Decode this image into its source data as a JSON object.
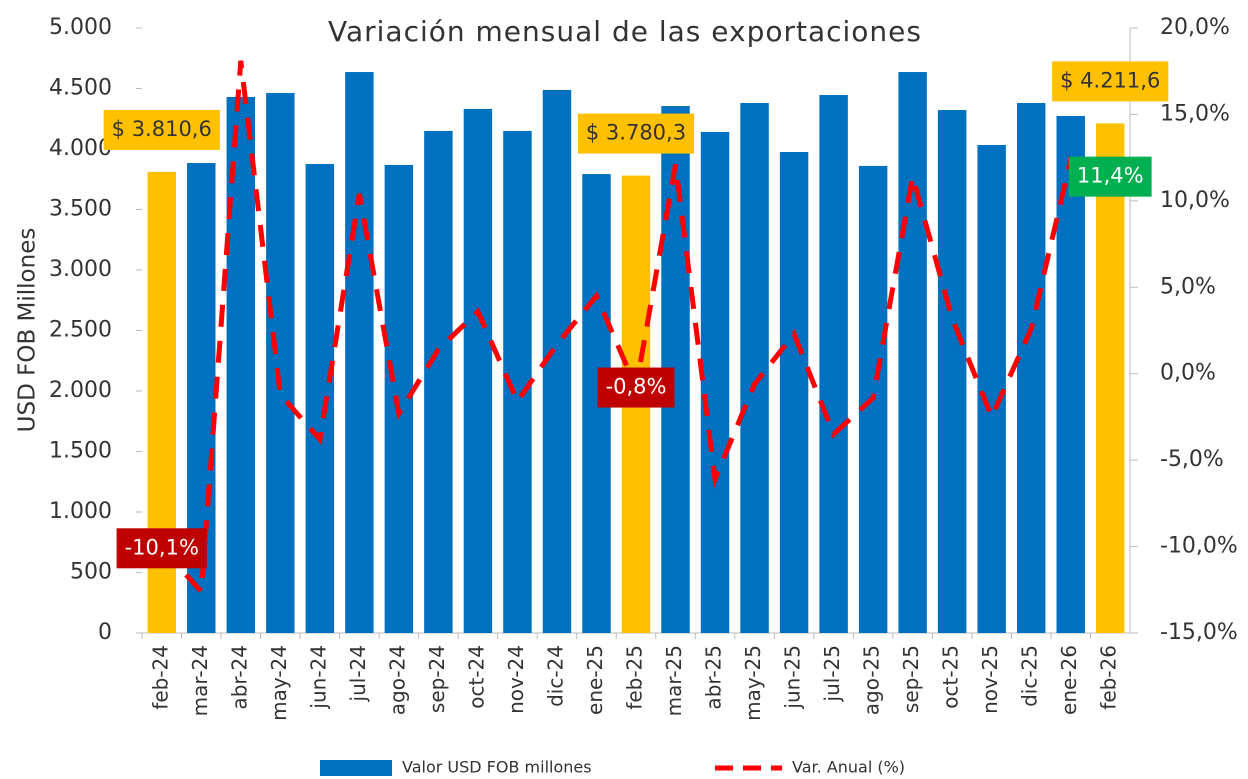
{
  "chart_data": {
    "type": "bar-line",
    "title": "Variación mensual de las exportaciones",
    "y_label": "USD FOB Millones",
    "categories": [
      "feb-24",
      "mar-24",
      "abr-24",
      "may-24",
      "jun-24",
      "jul-24",
      "ago-24",
      "sep-24",
      "oct-24",
      "nov-24",
      "dic-24",
      "ene-25",
      "feb-25",
      "mar-25",
      "abr-25",
      "may-25",
      "jun-25",
      "jul-25",
      "ago-25",
      "sep-25",
      "oct-25",
      "nov-25",
      "dic-25",
      "ene-26",
      "feb-26"
    ],
    "series": [
      {
        "name": "Valor USD FOB millones",
        "type": "bar",
        "color": "#0070c0",
        "highlight_color": "#ffc000",
        "colors": [
          "#ffc000",
          "#0070c0",
          "#0070c0",
          "#0070c0",
          "#0070c0",
          "#0070c0",
          "#0070c0",
          "#0070c0",
          "#0070c0",
          "#0070c0",
          "#0070c0",
          "#0070c0",
          "#ffc000",
          "#0070c0",
          "#0070c0",
          "#0070c0",
          "#0070c0",
          "#0070c0",
          "#0070c0",
          "#0070c0",
          "#0070c0",
          "#0070c0",
          "#0070c0",
          "#0070c0",
          "#ffc000"
        ],
        "values": [
          3810.6,
          3884,
          4430,
          4463,
          3876,
          4636,
          3868,
          4149,
          4331,
          4149,
          4488,
          3793,
          3780.3,
          4355,
          4141,
          4380,
          3975,
          4446,
          3860,
          4636,
          4322,
          4033,
          4380,
          4273,
          4211.6
        ],
        "value_labels": [
          "$ 3.810,6",
          null,
          null,
          null,
          null,
          null,
          null,
          null,
          null,
          null,
          null,
          null,
          "$ 3.780,3",
          null,
          null,
          null,
          null,
          null,
          null,
          null,
          null,
          null,
          null,
          null,
          "$ 4.211,6"
        ]
      },
      {
        "name": "Var. Anual (%)",
        "type": "line",
        "axis": "y2",
        "color": "#ff0000",
        "values": [
          -10.1,
          -12.6,
          18.1,
          -1.2,
          -3.8,
          10.4,
          -2.3,
          1.4,
          3.6,
          -1.6,
          1.7,
          4.5,
          -0.8,
          12.1,
          -6.1,
          -0.6,
          2.3,
          -3.5,
          -1.4,
          11.4,
          3.2,
          -2.5,
          2.6,
          12.4,
          11.4
        ],
        "value_labels": [
          "-10,1%",
          null,
          null,
          null,
          null,
          null,
          null,
          null,
          null,
          null,
          null,
          null,
          "-0,8%",
          null,
          null,
          null,
          null,
          null,
          null,
          null,
          null,
          null,
          null,
          null,
          "11,4%"
        ]
      }
    ],
    "ylim": [
      0,
      5000
    ],
    "yticks": [
      0,
      500,
      {
        "value": 1000,
        "label": "1.000"
      },
      {
        "value": 1500,
        "label": "1.500"
      },
      {
        "value": 2000,
        "label": "2.000"
      },
      {
        "value": 2500,
        "label": "2.500"
      },
      {
        "value": 3000,
        "label": "3.000"
      },
      {
        "value": 3500,
        "label": "3.500"
      },
      {
        "value": 4000,
        "label": "4.000"
      },
      {
        "value": 4500,
        "label": "4.500"
      },
      {
        "value": 5000,
        "label": "5.000"
      }
    ],
    "y2lim": [
      -15,
      20
    ],
    "y2ticks": [
      {
        "value": -15,
        "label": "-15,0%"
      },
      {
        "value": -10,
        "label": "-10,0%"
      },
      {
        "value": -5,
        "label": "-5,0%"
      },
      {
        "value": 0,
        "label": "0,0%"
      },
      {
        "value": 5,
        "label": "5,0%"
      },
      {
        "value": 10,
        "label": "10,0%"
      },
      {
        "value": 15,
        "label": "15,0%"
      },
      {
        "value": 20,
        "label": "20,0%"
      }
    ],
    "legend": "bottom"
  }
}
